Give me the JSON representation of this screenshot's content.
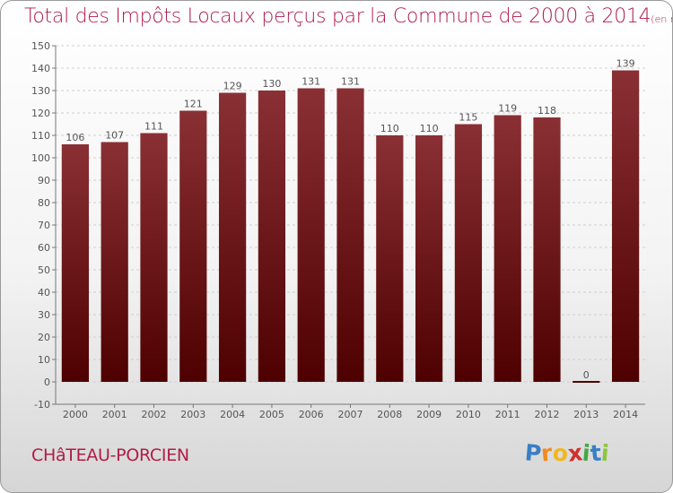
{
  "title": "Total des Impôts Locaux perçus par la Commune de 2000 à 2014",
  "title_unit": "(en milliers d'€)",
  "commune": "CHâTEAU-PORCIEN",
  "logo": {
    "letters": [
      "P",
      "r",
      "o",
      "x",
      "i",
      "t",
      "i"
    ],
    "colors": [
      "#3a7fc4",
      "#f28a1e",
      "#f2b61e",
      "#d0312d",
      "#45a843",
      "#3a7fc4",
      "#8cc63f"
    ]
  },
  "colors": {
    "title": "#b01c4a",
    "bar_top": "#8a3035",
    "bar_bottom": "#4e0000",
    "label": "#555555",
    "grid": "#cfcfcf"
  },
  "chart_data": {
    "type": "bar",
    "title": "Total des Impôts Locaux perçus par la Commune de 2000 à 2014",
    "categories": [
      "2000",
      "2001",
      "2002",
      "2003",
      "2004",
      "2005",
      "2006",
      "2007",
      "2008",
      "2009",
      "2010",
      "2011",
      "2012",
      "2013",
      "2014"
    ],
    "values": [
      106,
      107,
      111,
      121,
      129,
      130,
      131,
      131,
      110,
      110,
      115,
      119,
      118,
      0,
      139
    ],
    "ylim": [
      -10,
      150
    ],
    "yticks": [
      -10,
      0,
      10,
      20,
      30,
      40,
      50,
      60,
      70,
      80,
      90,
      100,
      110,
      120,
      130,
      140,
      150
    ],
    "grid": "horizontal dashed",
    "legend": "none",
    "xlabel": "",
    "ylabel": ""
  }
}
